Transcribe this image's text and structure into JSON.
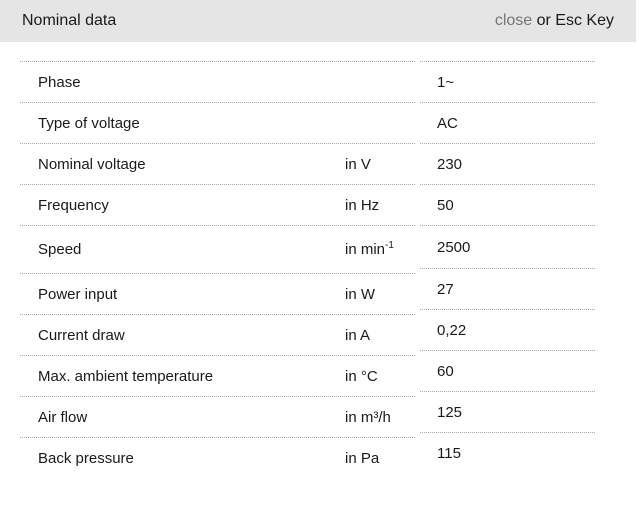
{
  "header": {
    "title": "Nominal data",
    "close_label": "close",
    "close_suffix": " or Esc Key"
  },
  "colors": {
    "header_bg": "#e5e5e5",
    "text": "#1a1a1a",
    "close_link": "#757575",
    "divider_dotted": "#a8a8a8",
    "background": "#ffffff"
  },
  "table": {
    "rows": [
      {
        "label": "Phase",
        "unit": "",
        "unit_sup": "",
        "value": "1~"
      },
      {
        "label": "Type of voltage",
        "unit": "",
        "unit_sup": "",
        "value": "AC"
      },
      {
        "label": "Nominal voltage",
        "unit": "in V",
        "unit_sup": "",
        "value": "230"
      },
      {
        "label": "Frequency",
        "unit": "in Hz",
        "unit_sup": "",
        "value": "50"
      },
      {
        "label": "Speed",
        "unit": "in min",
        "unit_sup": "-1",
        "value": "2500"
      },
      {
        "label": "Power input",
        "unit": "in W",
        "unit_sup": "",
        "value": "27"
      },
      {
        "label": "Current draw",
        "unit": "in A",
        "unit_sup": "",
        "value": "0,22"
      },
      {
        "label": "Max. ambient temperature",
        "unit": "in °C",
        "unit_sup": "",
        "value": "60"
      },
      {
        "label": "Air flow",
        "unit": "in m³/h",
        "unit_sup": "",
        "value": "125"
      },
      {
        "label": "Back pressure",
        "unit": "in Pa",
        "unit_sup": "",
        "value": "115"
      }
    ]
  }
}
